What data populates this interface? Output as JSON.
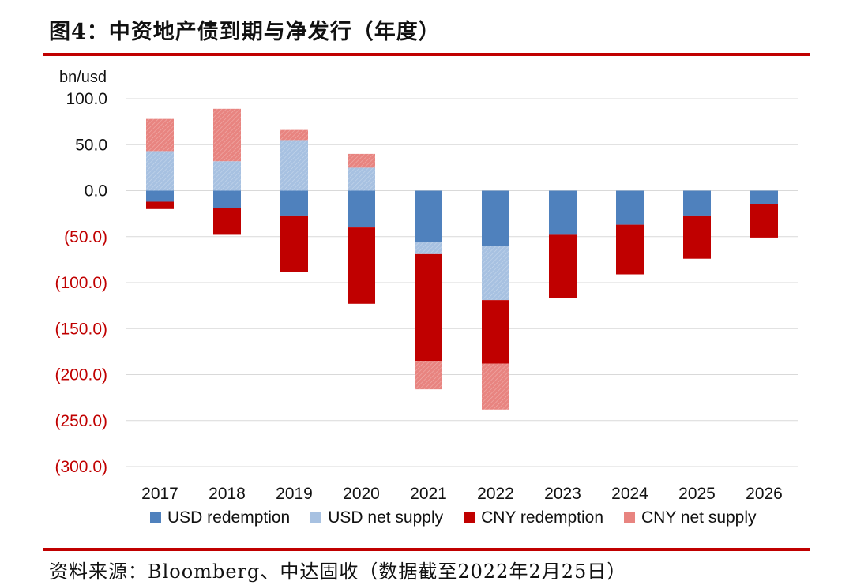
{
  "header": {
    "title": "图4：中资地产债到期与净发行（年度）"
  },
  "footer": {
    "source": "资料来源：Bloomberg、中达固收（数据截至2022年2月25日）"
  },
  "colors": {
    "usd_redemption": "#4f81bd",
    "usd_net_supply": "#a7c1e1",
    "cny_redemption": "#c00000",
    "cny_net_supply": "#e88480",
    "rule": "#c00000",
    "negative_tick": "#c00000"
  },
  "chart_data": {
    "type": "bar",
    "stacked": true,
    "title": "图4：中资地产债到期与净发行（年度）",
    "ylabel": "bn/usd",
    "xlabel": "",
    "ylim": [
      -300,
      100
    ],
    "yticks": [
      100,
      50,
      0,
      -50,
      -100,
      -150,
      -200,
      -250,
      -300
    ],
    "ytick_labels": [
      "100.0",
      "50.0",
      "0.0",
      "(50.0)",
      "(100.0)",
      "(150.0)",
      "(200.0)",
      "(250.0)",
      "(300.0)"
    ],
    "categories": [
      "2017",
      "2018",
      "2019",
      "2020",
      "2021",
      "2022",
      "2023",
      "2024",
      "2025",
      "2026"
    ],
    "grid": true,
    "legend_position": "bottom",
    "series": [
      {
        "name": "USD redemption",
        "key": "usd_redemption",
        "values": [
          -12,
          -19,
          -27,
          -40,
          -56,
          -60,
          -48,
          -37,
          -27,
          -15
        ]
      },
      {
        "name": "USD net supply",
        "key": "usd_net_supply",
        "values": [
          43,
          32,
          55,
          25,
          -13,
          -59,
          0,
          0,
          0,
          0
        ]
      },
      {
        "name": "CNY redemption",
        "key": "cny_redemption",
        "values": [
          -8,
          -29,
          -61,
          -83,
          -116,
          -69,
          -69,
          -54,
          -47,
          -36
        ]
      },
      {
        "name": "CNY net supply",
        "key": "cny_net_supply",
        "values": [
          35,
          57,
          11,
          15,
          -31,
          -50,
          0,
          0,
          0,
          0
        ]
      }
    ]
  }
}
